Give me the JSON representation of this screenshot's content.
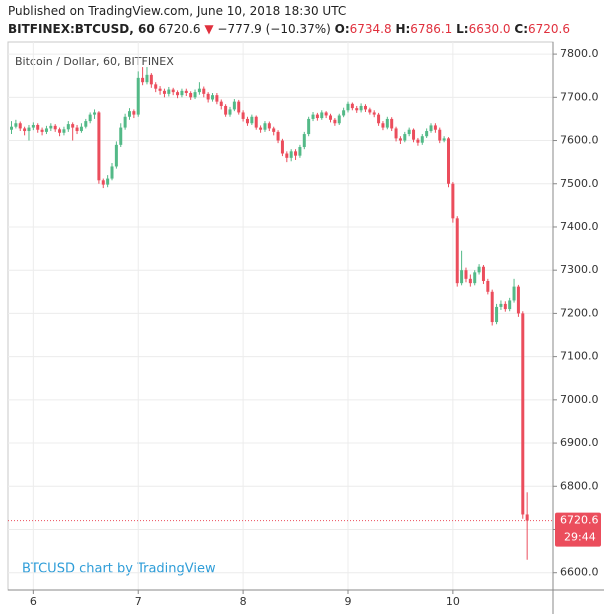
{
  "header": {
    "published": "Published on TradingView.com, June 10, 2018 18:30 UTC",
    "symbol": "BITFINEX:BTCUSD, 60",
    "last": "6720.6",
    "arrow": "▼",
    "change": "−777.9 (−10.37%)",
    "ohlc": [
      {
        "label": "O:",
        "value": "6734.8"
      },
      {
        "label": "H:",
        "value": "6786.1"
      },
      {
        "label": "L:",
        "value": "6630.0"
      },
      {
        "label": "C:",
        "value": "6720.6"
      }
    ]
  },
  "chart_data": {
    "type": "candlestick",
    "title": "Bitcoin / Dollar, 60, BITFINEX",
    "watermark": "BTCUSD chart by TradingView",
    "up_color": "#53b987",
    "down_color": "#eb4d5c",
    "grid": true,
    "ylim": [
      6560,
      7828
    ],
    "yticks": [
      {
        "value": 6600,
        "label": "6600.0"
      },
      {
        "value": 6700,
        "label": "6700.0"
      },
      {
        "value": 6800,
        "label": "6800.0"
      },
      {
        "value": 6900,
        "label": "6900.0"
      },
      {
        "value": 7000,
        "label": "7000.0"
      },
      {
        "value": 7100,
        "label": "7100.0"
      },
      {
        "value": 7200,
        "label": "7200.0"
      },
      {
        "value": 7300,
        "label": "7300.0"
      },
      {
        "value": 7400,
        "label": "7400.0"
      },
      {
        "value": 7500,
        "label": "7500.0"
      },
      {
        "value": 7600,
        "label": "7600.0"
      },
      {
        "value": 7700,
        "label": "7700.0"
      },
      {
        "value": 7800,
        "label": "7800.0"
      }
    ],
    "xticks": [
      {
        "value": 5,
        "label": "6"
      },
      {
        "value": 29,
        "label": "7"
      },
      {
        "value": 53,
        "label": "8"
      },
      {
        "value": 77,
        "label": "9"
      },
      {
        "value": 101,
        "label": "10"
      }
    ],
    "price_tag": {
      "value": 6720.6,
      "label": "6720.6"
    },
    "countdown": "29:44",
    "open": [
      7625,
      7632,
      7640,
      7628,
      7622,
      7630,
      7636,
      7625,
      7620,
      7628,
      7634,
      7626,
      7618,
      7626,
      7638,
      7630,
      7622,
      7632,
      7645,
      7660,
      7665,
      7508,
      7498,
      7512,
      7540,
      7590,
      7630,
      7655,
      7668,
      7660,
      7745,
      7735,
      7752,
      7730,
      7720,
      7715,
      7708,
      7718,
      7712,
      7705,
      7715,
      7710,
      7700,
      7712,
      7720,
      7708,
      7695,
      7705,
      7690,
      7680,
      7660,
      7672,
      7690,
      7665,
      7650,
      7640,
      7655,
      7630,
      7625,
      7640,
      7628,
      7620,
      7600,
      7570,
      7560,
      7575,
      7565,
      7585,
      7615,
      7650,
      7660,
      7652,
      7665,
      7658,
      7648,
      7640,
      7658,
      7670,
      7685,
      7675,
      7670,
      7680,
      7672,
      7665,
      7660,
      7640,
      7630,
      7650,
      7628,
      7605,
      7600,
      7615,
      7625,
      7602,
      7595,
      7610,
      7622,
      7635,
      7625,
      7600,
      7605,
      7500,
      7420,
      7270,
      7300,
      7280,
      7270,
      7295,
      7308,
      7275,
      7250,
      7180,
      7215,
      7222,
      7210,
      7230,
      7262,
      7200,
      6734.8
    ],
    "high": [
      7645,
      7648,
      7644,
      7632,
      7636,
      7642,
      7640,
      7630,
      7634,
      7640,
      7638,
      7630,
      7632,
      7645,
      7642,
      7636,
      7640,
      7650,
      7665,
      7672,
      7668,
      7512,
      7520,
      7548,
      7598,
      7640,
      7662,
      7675,
      7672,
      7760,
      7770,
      7770,
      7756,
      7735,
      7726,
      7720,
      7724,
      7722,
      7716,
      7720,
      7720,
      7714,
      7718,
      7735,
      7725,
      7712,
      7710,
      7710,
      7695,
      7684,
      7678,
      7696,
      7694,
      7670,
      7655,
      7660,
      7658,
      7635,
      7645,
      7644,
      7632,
      7624,
      7604,
      7575,
      7580,
      7580,
      7590,
      7620,
      7655,
      7666,
      7664,
      7670,
      7668,
      7662,
      7652,
      7662,
      7676,
      7690,
      7688,
      7680,
      7686,
      7684,
      7676,
      7670,
      7664,
      7645,
      7655,
      7654,
      7632,
      7610,
      7620,
      7630,
      7628,
      7606,
      7615,
      7628,
      7640,
      7640,
      7630,
      7610,
      7608,
      7504,
      7425,
      7345,
      7306,
      7290,
      7300,
      7314,
      7312,
      7280,
      7255,
      7222,
      7230,
      7228,
      7236,
      7280,
      7266,
      7205,
      6786.1
    ],
    "low": [
      7615,
      7628,
      7622,
      7612,
      7600,
      7624,
      7618,
      7612,
      7615,
      7622,
      7620,
      7610,
      7612,
      7620,
      7600,
      7615,
      7618,
      7628,
      7640,
      7650,
      7500,
      7490,
      7492,
      7508,
      7535,
      7585,
      7625,
      7648,
      7652,
      7655,
      7728,
      7730,
      7722,
      7712,
      7706,
      7700,
      7702,
      7705,
      7698,
      7700,
      7703,
      7694,
      7696,
      7706,
      7700,
      7688,
      7690,
      7684,
      7672,
      7655,
      7655,
      7668,
      7660,
      7644,
      7634,
      7636,
      7625,
      7618,
      7620,
      7622,
      7612,
      7594,
      7564,
      7550,
      7552,
      7555,
      7560,
      7580,
      7610,
      7645,
      7646,
      7648,
      7652,
      7642,
      7634,
      7636,
      7654,
      7665,
      7670,
      7664,
      7665,
      7666,
      7660,
      7654,
      7634,
      7624,
      7626,
      7622,
      7598,
      7592,
      7596,
      7610,
      7596,
      7588,
      7590,
      7606,
      7618,
      7618,
      7594,
      7596,
      7492,
      7410,
      7262,
      7265,
      7272,
      7262,
      7265,
      7290,
      7268,
      7244,
      7172,
      7175,
      7208,
      7204,
      7205,
      7225,
      7192,
      6725,
      6630.0
    ],
    "close": [
      7632,
      7640,
      7628,
      7622,
      7630,
      7636,
      7625,
      7620,
      7628,
      7634,
      7626,
      7618,
      7626,
      7638,
      7630,
      7622,
      7632,
      7645,
      7660,
      7665,
      7508,
      7498,
      7512,
      7540,
      7590,
      7630,
      7655,
      7668,
      7660,
      7745,
      7735,
      7752,
      7730,
      7720,
      7715,
      7708,
      7718,
      7712,
      7705,
      7715,
      7710,
      7700,
      7712,
      7720,
      7708,
      7695,
      7705,
      7690,
      7680,
      7660,
      7672,
      7690,
      7665,
      7650,
      7640,
      7655,
      7630,
      7625,
      7640,
      7628,
      7620,
      7600,
      7570,
      7560,
      7575,
      7565,
      7585,
      7615,
      7650,
      7660,
      7652,
      7665,
      7658,
      7648,
      7640,
      7658,
      7670,
      7685,
      7675,
      7670,
      7680,
      7672,
      7665,
      7660,
      7640,
      7630,
      7650,
      7628,
      7605,
      7600,
      7615,
      7625,
      7602,
      7595,
      7610,
      7622,
      7635,
      7625,
      7600,
      7605,
      7500,
      7420,
      7270,
      7300,
      7280,
      7270,
      7295,
      7308,
      7275,
      7250,
      7180,
      7215,
      7222,
      7210,
      7230,
      7262,
      7200,
      6734.8,
      6720.6
    ]
  }
}
